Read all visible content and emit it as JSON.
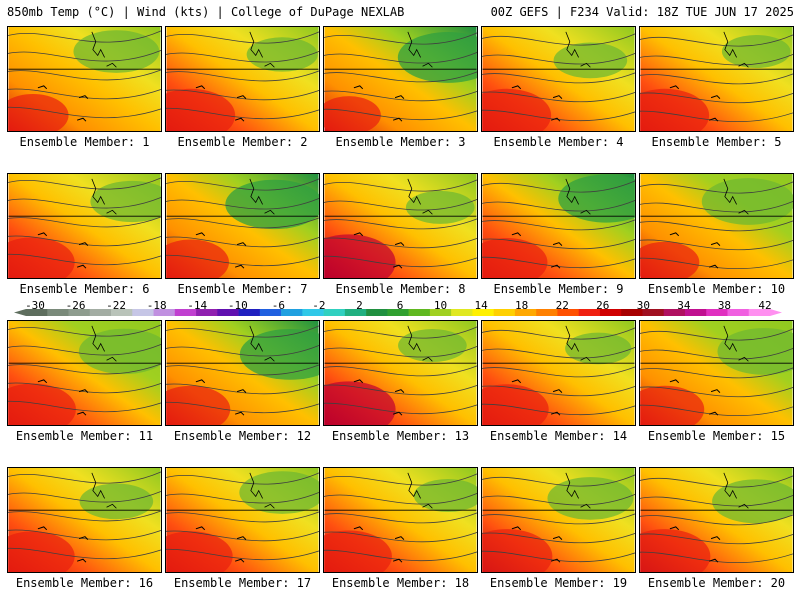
{
  "header": {
    "left": "850mb Temp (°C) | Wind (kts) | College of DuPage NEXLAB",
    "right": "00Z GEFS | F234 Valid: 18Z TUE JUN 17 2025"
  },
  "panels": [
    {
      "label": "Ensemble Member: 1",
      "warm": 0.45,
      "cool": 0.55
    },
    {
      "label": "Ensemble Member: 2",
      "warm": 0.8,
      "cool": 0.25
    },
    {
      "label": "Ensemble Member: 3",
      "warm": 0.3,
      "cool": 0.85
    },
    {
      "label": "Ensemble Member: 4",
      "warm": 0.8,
      "cool": 0.3
    },
    {
      "label": "Ensemble Member: 5",
      "warm": 0.8,
      "cool": 0.2
    },
    {
      "label": "Ensemble Member: 6",
      "warm": 0.7,
      "cool": 0.5
    },
    {
      "label": "Ensemble Member: 7",
      "warm": 0.55,
      "cool": 0.8
    },
    {
      "label": "Ensemble Member: 8",
      "warm": 0.9,
      "cool": 0.2
    },
    {
      "label": "Ensemble Member: 9",
      "warm": 0.65,
      "cool": 0.75
    },
    {
      "label": "Ensemble Member: 10",
      "warm": 0.4,
      "cool": 0.7
    },
    {
      "label": "Ensemble Member: 11",
      "warm": 0.75,
      "cool": 0.65
    },
    {
      "label": "Ensemble Member: 12",
      "warm": 0.6,
      "cool": 0.85
    },
    {
      "label": "Ensemble Member: 13",
      "warm": 0.9,
      "cool": 0.2
    },
    {
      "label": "Ensemble Member: 14",
      "warm": 0.7,
      "cool": 0.15
    },
    {
      "label": "Ensemble Member: 15",
      "warm": 0.6,
      "cool": 0.7
    },
    {
      "label": "Ensemble Member: 16",
      "warm": 0.7,
      "cool": 0.3
    },
    {
      "label": "Ensemble Member: 17",
      "warm": 0.7,
      "cool": 0.55
    },
    {
      "label": "Ensemble Member: 18",
      "warm": 0.75,
      "cool": 0.2
    },
    {
      "label": "Ensemble Member: 19",
      "warm": 0.85,
      "cool": 0.55
    },
    {
      "label": "Ensemble Member: 20",
      "warm": 0.85,
      "cool": 0.6
    }
  ],
  "colorbar": {
    "labels": [
      "-30",
      "-26",
      "-22",
      "-18",
      "-14",
      "-10",
      "-6",
      "-2",
      "2",
      "6",
      "10",
      "14",
      "18",
      "22",
      "26",
      "30",
      "34",
      "38",
      "42"
    ],
    "colors": [
      "#5e6e5e",
      "#7a8a7a",
      "#8e9c8e",
      "#a3ada3",
      "#b9c3b9",
      "#c6c6e6",
      "#c090e0",
      "#c040d0",
      "#9020b0",
      "#6010b0",
      "#2020c0",
      "#2060e0",
      "#20a0e0",
      "#30c8e8",
      "#30d0c0",
      "#20b080",
      "#209040",
      "#30a030",
      "#60b820",
      "#a0d020",
      "#e0e820",
      "#fff000",
      "#ffd000",
      "#ffa800",
      "#ff8000",
      "#ff5000",
      "#f02010",
      "#d00000",
      "#a80000",
      "#a01020",
      "#b01060",
      "#c01090",
      "#e030c0",
      "#f060e0",
      "#ff90f0"
    ]
  }
}
